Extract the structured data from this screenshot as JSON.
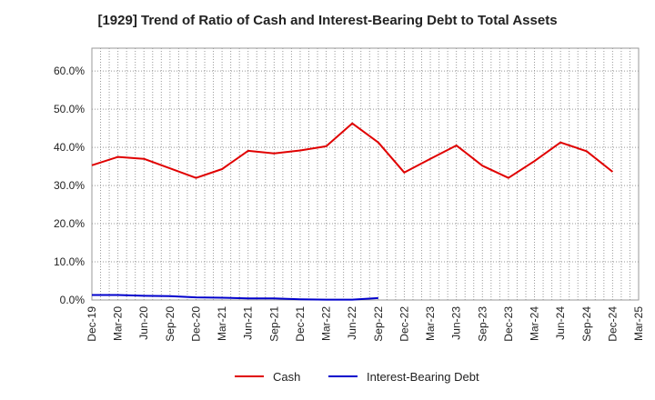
{
  "chart_data": {
    "type": "line",
    "title": "[1929]  Trend of Ratio of Cash and Interest-Bearing Debt to Total Assets",
    "xlabel": "",
    "ylabel": "",
    "categories": [
      "Dec-19",
      "Mar-20",
      "Jun-20",
      "Sep-20",
      "Dec-20",
      "Mar-21",
      "Jun-21",
      "Sep-21",
      "Dec-21",
      "Mar-22",
      "Jun-22",
      "Sep-22",
      "Dec-22",
      "Mar-23",
      "Jun-23",
      "Sep-23",
      "Dec-23",
      "Mar-24",
      "Jun-24",
      "Sep-24",
      "Dec-24",
      "Mar-25"
    ],
    "y_ticks": [
      "0.0%",
      "10.0%",
      "20.0%",
      "30.0%",
      "40.0%",
      "50.0%",
      "60.0%"
    ],
    "ylim": [
      0,
      66
    ],
    "grid": true,
    "legend_position": "bottom",
    "series": [
      {
        "name": "Cash",
        "color": "#e00000",
        "values": [
          35.3,
          37.5,
          37.0,
          34.5,
          32.0,
          34.3,
          39.1,
          38.4,
          39.2,
          40.3,
          46.3,
          41.3,
          33.4,
          37.0,
          40.5,
          35.2,
          32.0,
          36.4,
          41.3,
          39.0,
          33.6,
          null
        ]
      },
      {
        "name": "Interest-Bearing Debt",
        "color": "#0000cc",
        "values": [
          1.3,
          1.3,
          1.1,
          1.0,
          0.7,
          0.6,
          0.4,
          0.4,
          0.2,
          0.1,
          0.1,
          0.5,
          null,
          null,
          null,
          null,
          null,
          null,
          null,
          null,
          null,
          null
        ]
      }
    ]
  }
}
